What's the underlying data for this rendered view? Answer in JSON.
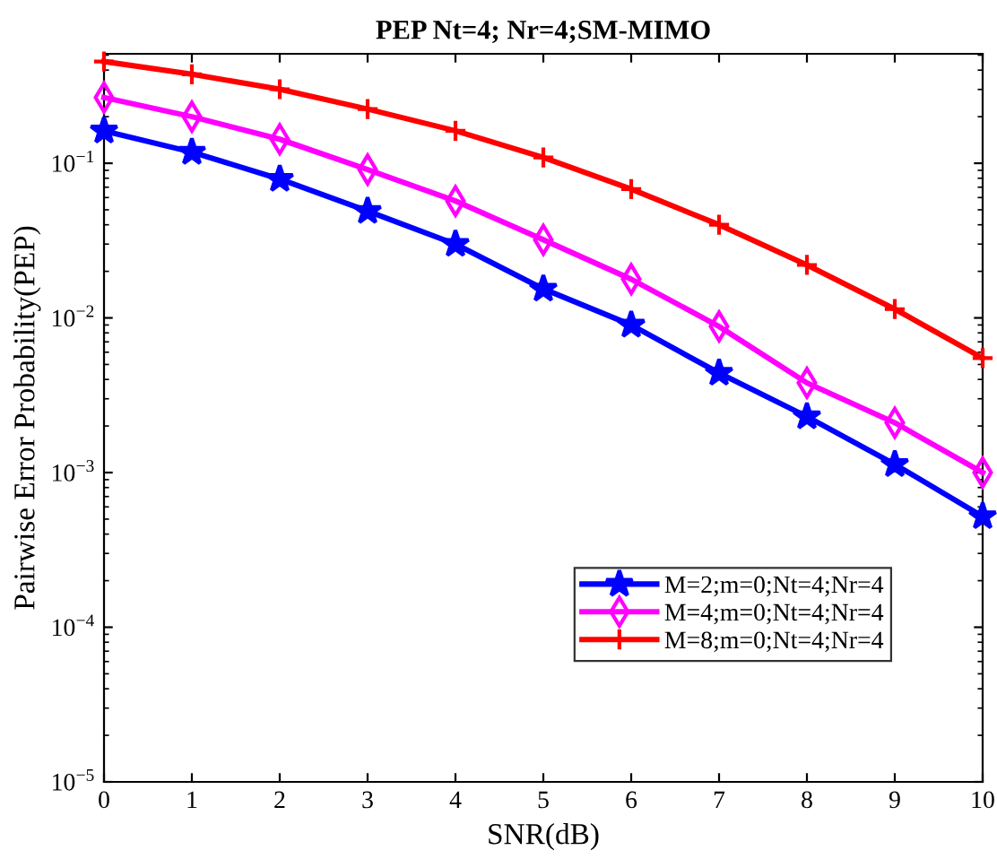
{
  "chart_data": {
    "type": "line",
    "title": "PEP Nt=4; Nr=4;SM-MIMO",
    "xlabel": "SNR(dB)",
    "ylabel": "Pairwise Error Probability(PEP)",
    "x": [
      0,
      1,
      2,
      3,
      4,
      5,
      6,
      7,
      8,
      9,
      10
    ],
    "series": [
      {
        "name": "M=2;m=0;Nt=4;Nr=4",
        "color": "#0000ff",
        "marker": "star",
        "values": [
          0.162,
          0.118,
          0.079,
          0.049,
          0.03,
          0.0154,
          0.009,
          0.0044,
          0.0023,
          0.00113,
          0.00052
        ]
      },
      {
        "name": "M=4;m=0;Nt=4;Nr=4",
        "color": "#ff00ff",
        "marker": "diamond",
        "values": [
          0.266,
          0.2,
          0.143,
          0.091,
          0.057,
          0.032,
          0.0178,
          0.0088,
          0.0038,
          0.0021,
          0.001
        ]
      },
      {
        "name": "M=8;m=0;Nt=4;Nr=4",
        "color": "#ff0000",
        "marker": "cross",
        "values": [
          0.455,
          0.376,
          0.301,
          0.224,
          0.162,
          0.109,
          0.068,
          0.04,
          0.022,
          0.0114,
          0.0055
        ]
      }
    ],
    "log": "y",
    "xlim": [
      0,
      10
    ],
    "xticks": [
      0,
      1,
      2,
      3,
      4,
      5,
      6,
      7,
      8,
      9,
      10
    ],
    "ylim": [
      1e-05,
      0.51
    ],
    "yticks": [
      {
        "value": 1e-05,
        "label": "10$^{−5}$"
      },
      {
        "value": 0.0001,
        "label": "10$^{−4}$"
      },
      {
        "value": 0.001,
        "label": "10$^{−3}$"
      },
      {
        "value": 0.01,
        "label": "10$^{−2}$"
      },
      {
        "value": 0.1,
        "label": "10$^{−1}$"
      }
    ],
    "grid": false,
    "legend": "right",
    "line_style": "solid"
  }
}
